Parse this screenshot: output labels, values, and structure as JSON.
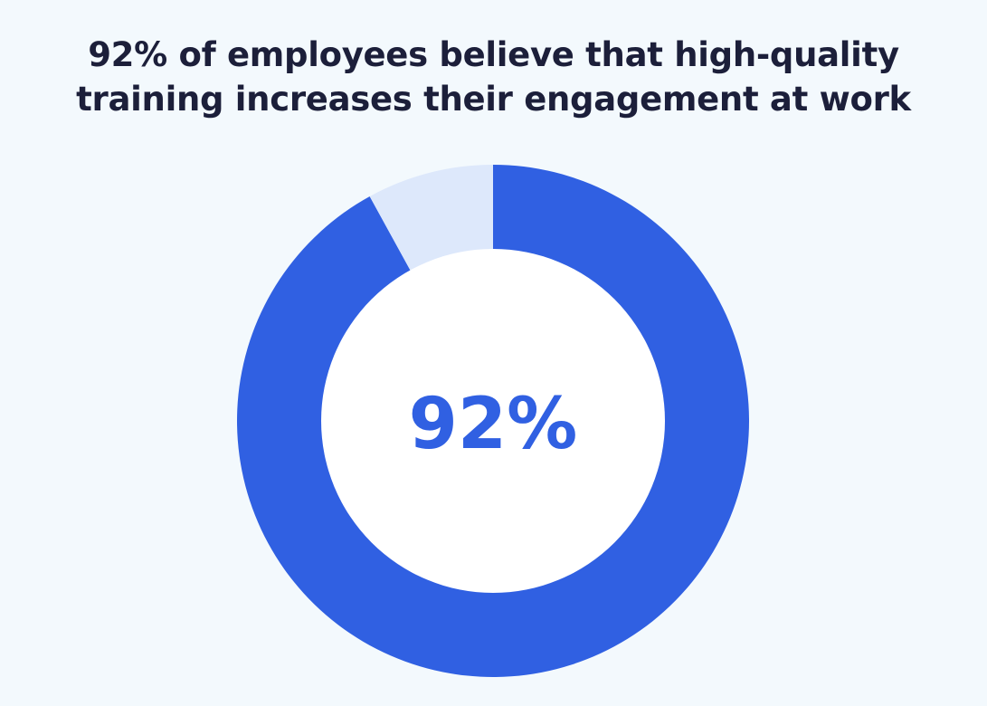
{
  "title_lines": [
    "92% of employees believe that high-quality",
    "training increases their engagement at work"
  ],
  "center_label": "92%",
  "colors": {
    "background": "#f3f9fd",
    "title": "#1c1f3a",
    "primary": "#3060e2",
    "secondary": "#dde8fb",
    "center": "#ffffff",
    "center_text": "#3060e2"
  },
  "chart_data": {
    "type": "pie",
    "title": "92% of employees believe that high-quality training increases their engagement at work",
    "categories": [
      "",
      ""
    ],
    "values": [
      92,
      8
    ],
    "legend": "none"
  }
}
